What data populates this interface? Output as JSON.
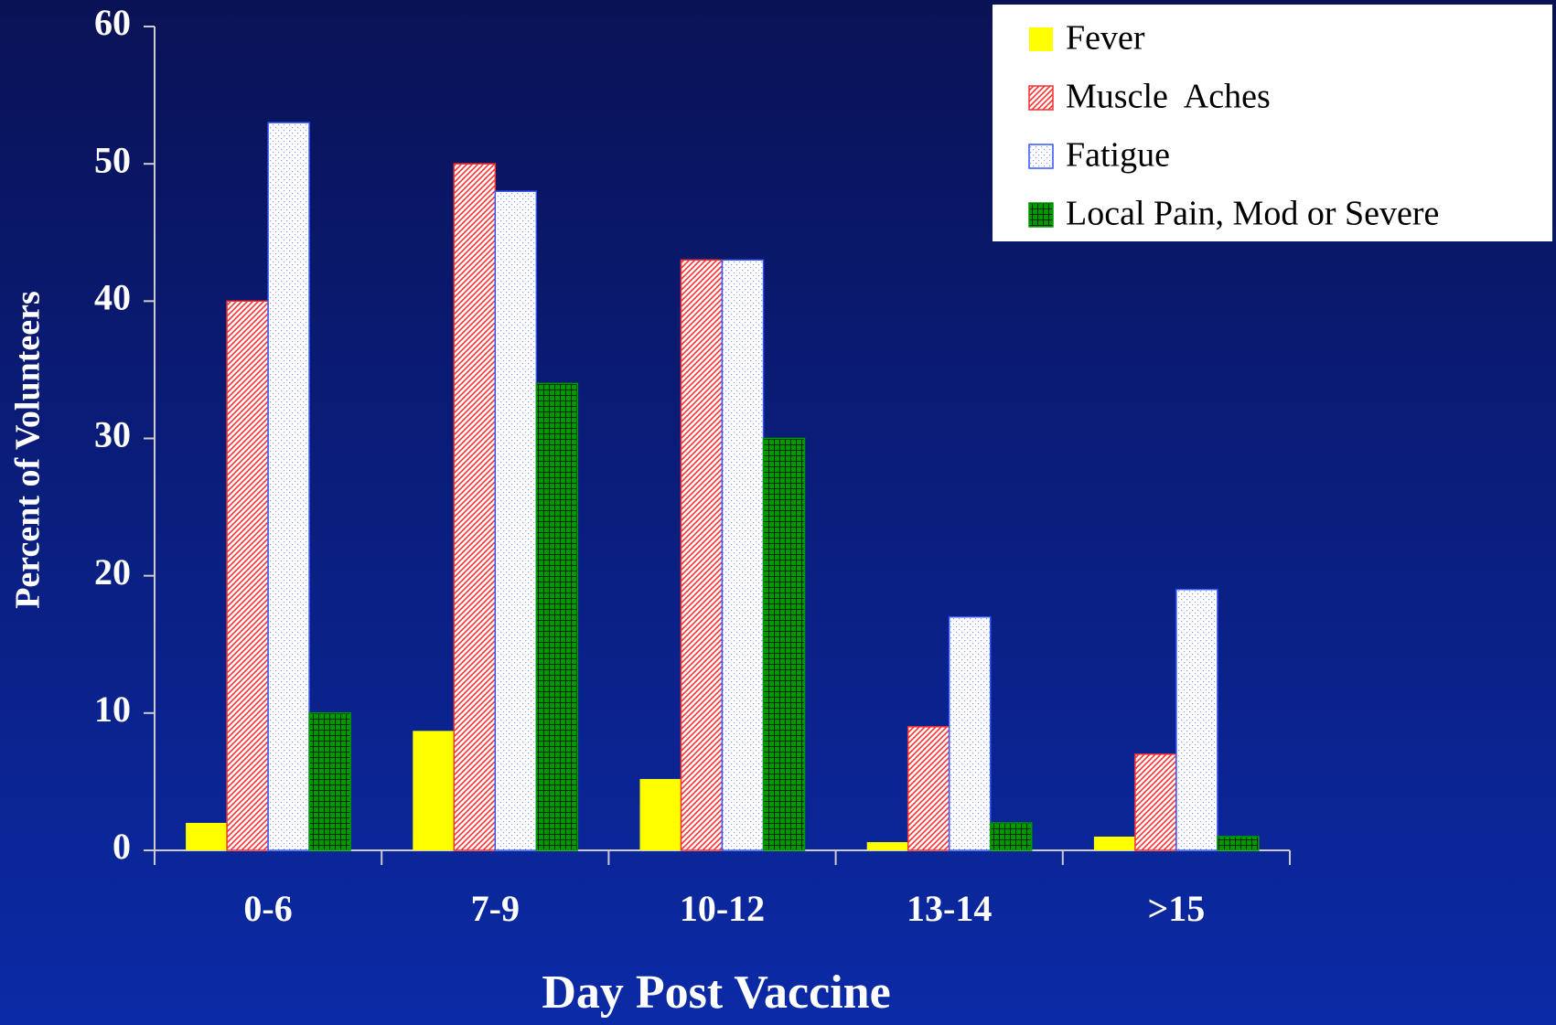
{
  "chart_data": {
    "type": "bar",
    "x_label": "Day Post Vaccine",
    "y_label": "Percent of Volunteers",
    "categories": [
      "0-6",
      "7-9",
      "10-12",
      "13-14",
      ">15"
    ],
    "series": [
      {
        "name": "Fever",
        "color": "#ffff00",
        "values": [
          2,
          8.7,
          5.2,
          0.6,
          1
        ]
      },
      {
        "name": "Muscle  Aches",
        "color": "#ff3030",
        "values": [
          40,
          50,
          43,
          9,
          7
        ]
      },
      {
        "name": "Fatigue",
        "color": "#3355ff",
        "values": [
          53,
          48,
          43,
          17,
          19
        ]
      },
      {
        "name": "Local Pain, Mod or Severe",
        "color": "#009900",
        "values": [
          10,
          34,
          30,
          2,
          1
        ]
      }
    ],
    "ylim": [
      0,
      60
    ],
    "yticks": [
      0,
      10,
      20,
      30,
      40,
      50,
      60
    ],
    "legend": "upper right"
  }
}
